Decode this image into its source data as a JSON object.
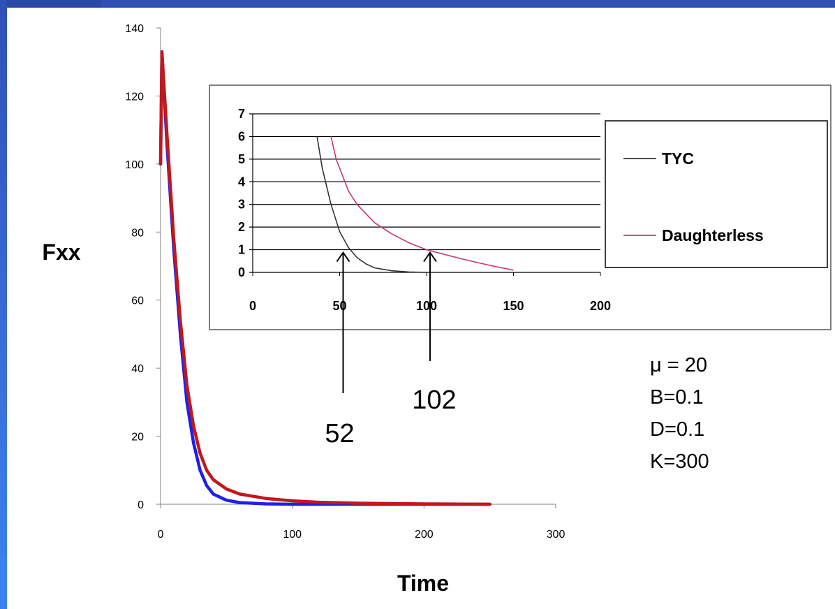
{
  "slide": {
    "colors": {
      "accent": "#2f4fb4",
      "accent_light": "#3b82ef"
    }
  },
  "chart_data": [
    {
      "type": "line",
      "title": "",
      "xlabel": "Time",
      "ylabel": "Fxx",
      "xlim": [
        0,
        300
      ],
      "ylim": [
        0,
        140
      ],
      "xticks": [
        "0",
        "100",
        "200",
        "300"
      ],
      "yticks": [
        "0",
        "20",
        "40",
        "60",
        "80",
        "100",
        "120",
        "140"
      ],
      "grid": false,
      "series": [
        {
          "color": "#1f1fe6",
          "points": [
            [
              0,
              100
            ],
            [
              1,
              133
            ],
            [
              5,
              105
            ],
            [
              10,
              75
            ],
            [
              15,
              50
            ],
            [
              20,
              30
            ],
            [
              25,
              18
            ],
            [
              30,
              10
            ],
            [
              35,
              5.5
            ],
            [
              40,
              3
            ],
            [
              50,
              1.2
            ],
            [
              60,
              0.5
            ],
            [
              80,
              0.1
            ],
            [
              100,
              0
            ],
            [
              150,
              0
            ],
            [
              200,
              0
            ],
            [
              250,
              0
            ]
          ]
        },
        {
          "color": "#c0181c",
          "points": [
            [
              0,
              100
            ],
            [
              1,
              133
            ],
            [
              5,
              108
            ],
            [
              10,
              78
            ],
            [
              15,
              54
            ],
            [
              20,
              35
            ],
            [
              25,
              23
            ],
            [
              30,
              15
            ],
            [
              35,
              10
            ],
            [
              40,
              7.2
            ],
            [
              50,
              4.5
            ],
            [
              60,
              3
            ],
            [
              80,
              1.7
            ],
            [
              100,
              1
            ],
            [
              120,
              0.6
            ],
            [
              150,
              0.3
            ],
            [
              200,
              0.1
            ],
            [
              250,
              0
            ]
          ]
        }
      ]
    },
    {
      "type": "line",
      "title": "",
      "xlabel": "",
      "ylabel": "",
      "xlim": [
        0,
        200
      ],
      "ylim": [
        0,
        7
      ],
      "xticks": [
        "0",
        "50",
        "100",
        "150",
        "200"
      ],
      "yticks": [
        "0",
        "1",
        "2",
        "3",
        "4",
        "5",
        "6",
        "7"
      ],
      "grid": true,
      "legend_position": "right",
      "series": [
        {
          "name": "TYC",
          "color": "#333333",
          "points": [
            [
              37,
              6
            ],
            [
              40,
              4.6
            ],
            [
              45,
              3.0
            ],
            [
              50,
              1.8
            ],
            [
              55,
              1.1
            ],
            [
              60,
              0.65
            ],
            [
              65,
              0.38
            ],
            [
              70,
              0.2
            ],
            [
              80,
              0.07
            ],
            [
              90,
              0.02
            ],
            [
              100,
              0
            ]
          ]
        },
        {
          "name": "Daughterless",
          "color": "#c0396b",
          "points": [
            [
              45,
              6
            ],
            [
              48,
              5.0
            ],
            [
              55,
              3.6
            ],
            [
              60,
              3.0
            ],
            [
              70,
              2.2
            ],
            [
              80,
              1.7
            ],
            [
              90,
              1.3
            ],
            [
              100,
              1.0
            ],
            [
              110,
              0.8
            ],
            [
              120,
              0.6
            ],
            [
              130,
              0.42
            ],
            [
              140,
              0.25
            ],
            [
              150,
              0.1
            ]
          ]
        }
      ],
      "annotations": [
        "52",
        "102"
      ]
    }
  ],
  "params": [
    "μ = 20",
    "B=0.1",
    "D=0.1",
    "K=300"
  ]
}
